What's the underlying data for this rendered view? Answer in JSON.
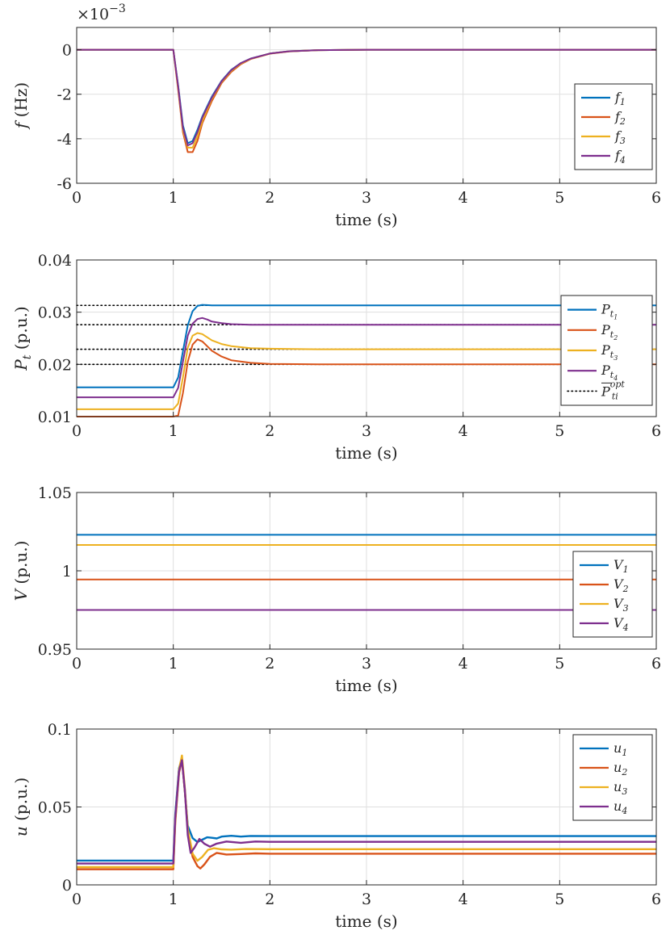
{
  "colors": {
    "series1": "#0072BD",
    "series2": "#D95319",
    "series3": "#EDB120",
    "series4": "#7E2F8E",
    "opt": "#000000",
    "grid": "#DFDFDF",
    "axis": "#262626"
  },
  "chart_data": [
    {
      "type": "line",
      "id": "freq",
      "xlabel": "time (s)",
      "ylabel_sym": "f",
      "ylabel_unit": "(Hz)",
      "exponent_label": "×10",
      "exponent_power": "−3",
      "xlim": [
        0,
        6
      ],
      "ylim": [
        -6,
        1
      ],
      "xticks": [
        0,
        1,
        2,
        3,
        4,
        5,
        6
      ],
      "xtick_labels": [
        "0",
        "1",
        "2",
        "3",
        "4",
        "5",
        "6"
      ],
      "yticks": [
        -6,
        -4,
        -2,
        0
      ],
      "ytick_labels": [
        "-6",
        "-4",
        "-2",
        "0"
      ],
      "grid": true,
      "legend_position": "right",
      "series": [
        {
          "name": "f",
          "sub": "1",
          "color_key": "series1",
          "x": [
            0,
            1.0,
            1.05,
            1.1,
            1.15,
            1.2,
            1.25,
            1.3,
            1.4,
            1.5,
            1.6,
            1.7,
            1.8,
            2.0,
            2.2,
            2.5,
            3.0,
            6.0
          ],
          "y": [
            0,
            0,
            -1.6,
            -3.4,
            -4.2,
            -4.1,
            -3.6,
            -3.0,
            -2.1,
            -1.4,
            -0.9,
            -0.6,
            -0.4,
            -0.17,
            -0.07,
            -0.02,
            0,
            0
          ]
        },
        {
          "name": "f",
          "sub": "2",
          "color_key": "series2",
          "x": [
            0,
            1.0,
            1.05,
            1.1,
            1.15,
            1.2,
            1.25,
            1.3,
            1.4,
            1.5,
            1.6,
            1.7,
            1.8,
            2.0,
            2.2,
            2.5,
            3.0,
            6.0
          ],
          "y": [
            0,
            0,
            -1.8,
            -3.7,
            -4.6,
            -4.6,
            -4.1,
            -3.3,
            -2.3,
            -1.5,
            -1.0,
            -0.65,
            -0.42,
            -0.18,
            -0.08,
            -0.02,
            0,
            0
          ]
        },
        {
          "name": "f",
          "sub": "3",
          "color_key": "series3",
          "x": [
            0,
            1.0,
            1.05,
            1.1,
            1.15,
            1.2,
            1.25,
            1.3,
            1.4,
            1.5,
            1.6,
            1.7,
            1.8,
            2.0,
            2.2,
            2.5,
            3.0,
            6.0
          ],
          "y": [
            0,
            0,
            -1.7,
            -3.6,
            -4.4,
            -4.4,
            -3.9,
            -3.2,
            -2.2,
            -1.45,
            -0.95,
            -0.62,
            -0.41,
            -0.17,
            -0.07,
            -0.02,
            0,
            0
          ]
        },
        {
          "name": "f",
          "sub": "4",
          "color_key": "series4",
          "x": [
            0,
            1.0,
            1.05,
            1.1,
            1.15,
            1.2,
            1.25,
            1.3,
            1.4,
            1.5,
            1.6,
            1.7,
            1.8,
            2.0,
            2.2,
            2.5,
            3.0,
            6.0
          ],
          "y": [
            0,
            0,
            -1.65,
            -3.5,
            -4.3,
            -4.2,
            -3.7,
            -3.05,
            -2.15,
            -1.42,
            -0.92,
            -0.6,
            -0.4,
            -0.17,
            -0.07,
            -0.02,
            0,
            0
          ]
        }
      ]
    },
    {
      "type": "line",
      "id": "power",
      "xlabel": "time (s)",
      "ylabel_sym": "P",
      "ylabel_sub": "t",
      "ylabel_unit": "(p.u.)",
      "xlim": [
        0,
        6
      ],
      "ylim": [
        0.01,
        0.04
      ],
      "xticks": [
        0,
        1,
        2,
        3,
        4,
        5,
        6
      ],
      "xtick_labels": [
        "0",
        "1",
        "2",
        "3",
        "4",
        "5",
        "6"
      ],
      "yticks": [
        0.01,
        0.02,
        0.03,
        0.04
      ],
      "ytick_labels": [
        "0.01",
        "0.02",
        "0.03",
        "0.04"
      ],
      "grid": true,
      "legend_position": "right",
      "series": [
        {
          "name": "P",
          "sub": "t",
          "subsub": "1",
          "color_key": "series1",
          "x": [
            0,
            1.0,
            1.05,
            1.1,
            1.15,
            1.2,
            1.25,
            1.3,
            1.4,
            1.5,
            2.0,
            6.0
          ],
          "y": [
            0.0156,
            0.0156,
            0.0175,
            0.0225,
            0.0275,
            0.0302,
            0.0312,
            0.0314,
            0.0313,
            0.0313,
            0.0313,
            0.0313
          ]
        },
        {
          "name": "P",
          "sub": "t",
          "subsub": "2",
          "color_key": "series2",
          "x": [
            0,
            1.0,
            1.05,
            1.1,
            1.15,
            1.2,
            1.25,
            1.3,
            1.35,
            1.4,
            1.5,
            1.6,
            1.8,
            2.0,
            2.5,
            6.0
          ],
          "y": [
            0.01,
            0.01,
            0.0102,
            0.0145,
            0.0205,
            0.0238,
            0.0248,
            0.0244,
            0.0235,
            0.0226,
            0.0215,
            0.0208,
            0.0203,
            0.0201,
            0.02,
            0.02
          ]
        },
        {
          "name": "P",
          "sub": "t",
          "subsub": "3",
          "color_key": "series3",
          "x": [
            0,
            1.0,
            1.05,
            1.1,
            1.15,
            1.2,
            1.25,
            1.3,
            1.35,
            1.4,
            1.5,
            1.6,
            1.8,
            2.0,
            2.5,
            6.0
          ],
          "y": [
            0.0114,
            0.0114,
            0.0125,
            0.0175,
            0.0232,
            0.0255,
            0.026,
            0.0258,
            0.0252,
            0.0246,
            0.0239,
            0.0235,
            0.0231,
            0.023,
            0.0229,
            0.0229
          ]
        },
        {
          "name": "P",
          "sub": "t",
          "subsub": "4",
          "color_key": "series4",
          "x": [
            0,
            1.0,
            1.05,
            1.1,
            1.15,
            1.2,
            1.25,
            1.3,
            1.35,
            1.4,
            1.5,
            1.6,
            1.8,
            2.0,
            2.5,
            6.0
          ],
          "y": [
            0.0137,
            0.0137,
            0.0155,
            0.0205,
            0.0255,
            0.0278,
            0.0287,
            0.0289,
            0.0286,
            0.0282,
            0.0279,
            0.0277,
            0.0276,
            0.0276,
            0.0276,
            0.0276
          ]
        }
      ],
      "reference_lines": {
        "name": "P",
        "over": true,
        "sub": "ti",
        "sup": "opt",
        "color_key": "opt",
        "values": [
          0.0313,
          0.0276,
          0.0229,
          0.02
        ]
      }
    },
    {
      "type": "line",
      "id": "voltage",
      "xlabel": "time (s)",
      "ylabel_sym": "V",
      "ylabel_unit": "(p.u.)",
      "xlim": [
        0,
        6
      ],
      "ylim": [
        0.95,
        1.05
      ],
      "xticks": [
        0,
        1,
        2,
        3,
        4,
        5,
        6
      ],
      "xtick_labels": [
        "0",
        "1",
        "2",
        "3",
        "4",
        "5",
        "6"
      ],
      "yticks": [
        0.95,
        1.0,
        1.05
      ],
      "ytick_labels": [
        "0.95",
        "1",
        "1.05"
      ],
      "grid": true,
      "legend_position": "right",
      "series": [
        {
          "name": "V",
          "sub": "1",
          "color_key": "series1",
          "x": [
            0,
            6
          ],
          "y": [
            1.023,
            1.023
          ]
        },
        {
          "name": "V",
          "sub": "2",
          "color_key": "series2",
          "x": [
            0,
            6
          ],
          "y": [
            0.9945,
            0.9945
          ]
        },
        {
          "name": "V",
          "sub": "3",
          "color_key": "series3",
          "x": [
            0,
            6
          ],
          "y": [
            1.0165,
            1.0165
          ]
        },
        {
          "name": "V",
          "sub": "4",
          "color_key": "series4",
          "x": [
            0,
            6
          ],
          "y": [
            0.975,
            0.975
          ]
        }
      ]
    },
    {
      "type": "line",
      "id": "control",
      "xlabel": "time (s)",
      "ylabel_sym": "u",
      "ylabel_unit": "(p.u.)",
      "xlim": [
        0,
        6
      ],
      "ylim": [
        0,
        0.1
      ],
      "xticks": [
        0,
        1,
        2,
        3,
        4,
        5,
        6
      ],
      "xtick_labels": [
        "0",
        "1",
        "2",
        "3",
        "4",
        "5",
        "6"
      ],
      "yticks": [
        0,
        0.05,
        0.1
      ],
      "ytick_labels": [
        "0",
        "0.05",
        "0.1"
      ],
      "grid": true,
      "legend_position": "top-right",
      "series": [
        {
          "name": "u",
          "sub": "1",
          "color_key": "series1",
          "x": [
            0,
            1.0,
            1.02,
            1.06,
            1.09,
            1.12,
            1.15,
            1.2,
            1.25,
            1.3,
            1.35,
            1.4,
            1.45,
            1.5,
            1.6,
            1.7,
            1.8,
            2.0,
            6.0
          ],
          "y": [
            0.0156,
            0.0156,
            0.045,
            0.075,
            0.081,
            0.06,
            0.038,
            0.03,
            0.0275,
            0.029,
            0.0305,
            0.0302,
            0.0298,
            0.031,
            0.0315,
            0.031,
            0.0314,
            0.0313,
            0.0313
          ]
        },
        {
          "name": "u",
          "sub": "2",
          "color_key": "series2",
          "x": [
            0,
            1.0,
            1.02,
            1.06,
            1.09,
            1.12,
            1.15,
            1.2,
            1.25,
            1.28,
            1.32,
            1.38,
            1.45,
            1.55,
            1.7,
            1.85,
            2.0,
            6.0
          ],
          "y": [
            0.01,
            0.01,
            0.04,
            0.072,
            0.08,
            0.06,
            0.035,
            0.018,
            0.012,
            0.0105,
            0.013,
            0.018,
            0.0205,
            0.0195,
            0.0198,
            0.0202,
            0.02,
            0.02
          ]
        },
        {
          "name": "u",
          "sub": "3",
          "color_key": "series3",
          "x": [
            0,
            1.0,
            1.02,
            1.06,
            1.09,
            1.12,
            1.15,
            1.2,
            1.25,
            1.3,
            1.36,
            1.42,
            1.5,
            1.6,
            1.75,
            2.0,
            6.0
          ],
          "y": [
            0.0114,
            0.0114,
            0.042,
            0.074,
            0.083,
            0.062,
            0.036,
            0.02,
            0.0155,
            0.018,
            0.0225,
            0.0235,
            0.0228,
            0.0226,
            0.023,
            0.0229,
            0.0229
          ]
        },
        {
          "name": "u",
          "sub": "4",
          "color_key": "series4",
          "x": [
            0,
            1.0,
            1.02,
            1.06,
            1.09,
            1.12,
            1.15,
            1.18,
            1.22,
            1.27,
            1.32,
            1.38,
            1.45,
            1.55,
            1.7,
            1.85,
            2.0,
            6.0
          ],
          "y": [
            0.0137,
            0.0137,
            0.043,
            0.073,
            0.08,
            0.061,
            0.032,
            0.0205,
            0.024,
            0.0295,
            0.0265,
            0.0245,
            0.0265,
            0.0278,
            0.027,
            0.0278,
            0.0276,
            0.0276
          ]
        }
      ]
    }
  ]
}
